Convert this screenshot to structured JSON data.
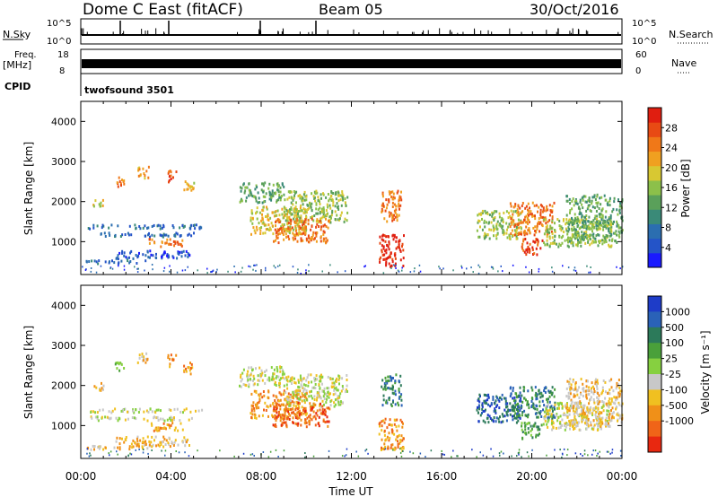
{
  "header": {
    "title": "Dome C East (fitACF)",
    "beam": "Beam 05",
    "date": "30/Oct/2016"
  },
  "status_panels": {
    "nsky": {
      "label": "N.Sky",
      "tick_top": "10^5",
      "tick_bottom": "10^0"
    },
    "nsearch": {
      "label": "N.Search",
      "tick_top": "10^5",
      "tick_bottom": "10^0"
    },
    "freq": {
      "label_line1": "Freq.",
      "label_line2": "[MHz]",
      "tick_top": "18",
      "tick_bottom": "8"
    },
    "nave": {
      "label": "Nave",
      "tick_top": "60",
      "tick_bottom": "0"
    },
    "cpid": {
      "label": "CPID",
      "value": "twofsound 3501"
    }
  },
  "chart_data": [
    {
      "type": "heatmap",
      "name": "power",
      "ylabel": "Slant Range [km]",
      "xlabel": "Time UT",
      "x_ticks": [
        "00:00",
        "04:00",
        "08:00",
        "12:00",
        "16:00",
        "20:00",
        "00:00"
      ],
      "y_ticks": [
        1000,
        2000,
        3000,
        4000
      ],
      "xlim_hours": [
        0,
        24
      ],
      "ylim_km": [
        180,
        4500
      ],
      "colorbar": {
        "label": "Power [dB]",
        "ticks": [
          4,
          8,
          12,
          16,
          20,
          24,
          28
        ],
        "range": [
          0,
          32
        ],
        "colors": [
          "#1a1aff",
          "#2454c8",
          "#2b6eb0",
          "#3a8a78",
          "#5aa05a",
          "#8cc04a",
          "#d8c832",
          "#f0a020",
          "#f07818",
          "#e84a14",
          "#e01e10"
        ]
      },
      "patches": [
        {
          "t": [
            0.5,
            1.0
          ],
          "r": [
            1900,
            2100
          ],
          "c": 6
        },
        {
          "t": [
            1.5,
            1.9
          ],
          "r": [
            2400,
            2700
          ],
          "c": 8
        },
        {
          "t": [
            2.5,
            3.0
          ],
          "r": [
            2600,
            2900
          ],
          "c": 7
        },
        {
          "t": [
            3.8,
            4.2
          ],
          "r": [
            2500,
            2800
          ],
          "c": 9
        },
        {
          "t": [
            4.5,
            5.0
          ],
          "r": [
            2300,
            2600
          ],
          "c": 6
        },
        {
          "t": [
            0.3,
            5.5
          ],
          "r": [
            1350,
            1450
          ],
          "c": 2
        },
        {
          "t": [
            0.3,
            5.0
          ],
          "r": [
            1150,
            1250
          ],
          "c": 2
        },
        {
          "t": [
            1.5,
            4.8
          ],
          "r": [
            600,
            800
          ],
          "c": 1
        },
        {
          "t": [
            0.2,
            3.0
          ],
          "r": [
            480,
            560
          ],
          "c": 2
        },
        {
          "t": [
            3.0,
            4.5
          ],
          "r": [
            900,
            1100
          ],
          "c": 8
        },
        {
          "t": [
            7.0,
            9.0
          ],
          "r": [
            2000,
            2500
          ],
          "c": 4
        },
        {
          "t": [
            7.5,
            10.0
          ],
          "r": [
            1200,
            1900
          ],
          "c": 6
        },
        {
          "t": [
            9.0,
            11.8
          ],
          "r": [
            1500,
            2300
          ],
          "c": 5
        },
        {
          "t": [
            8.5,
            11.0
          ],
          "r": [
            1000,
            1600
          ],
          "c": 8
        },
        {
          "t": [
            13.2,
            14.3
          ],
          "r": [
            400,
            1200
          ],
          "c": 10
        },
        {
          "t": [
            13.3,
            14.2
          ],
          "r": [
            1500,
            2300
          ],
          "c": 8
        },
        {
          "t": [
            17.5,
            19.5
          ],
          "r": [
            1100,
            1800
          ],
          "c": 5
        },
        {
          "t": [
            19.0,
            21.0
          ],
          "r": [
            1200,
            2000
          ],
          "c": 8
        },
        {
          "t": [
            20.5,
            23.5
          ],
          "r": [
            900,
            1600
          ],
          "c": 5
        },
        {
          "t": [
            21.5,
            24.0
          ],
          "r": [
            1000,
            2200
          ],
          "c": 4
        },
        {
          "t": [
            19.5,
            20.5
          ],
          "r": [
            700,
            1100
          ],
          "c": 9
        }
      ]
    },
    {
      "type": "heatmap",
      "name": "velocity",
      "ylabel": "Slant Range [km]",
      "xlabel": "Time UT",
      "x_ticks": [
        "00:00",
        "04:00",
        "08:00",
        "12:00",
        "16:00",
        "20:00",
        "00:00"
      ],
      "y_ticks": [
        1000,
        2000,
        3000,
        4000
      ],
      "xlim_hours": [
        0,
        24
      ],
      "ylim_km": [
        180,
        4500
      ],
      "colorbar": {
        "label": "Velocity [m s⁻¹]",
        "ticks": [
          "1000",
          "500",
          "100",
          "25",
          "-25",
          "-100",
          "-500",
          "-1000"
        ],
        "colors": [
          "#1e3cc8",
          "#2a62b8",
          "#2c7a5a",
          "#4aa03a",
          "#86d040",
          "#c8c8c8",
          "#f0c020",
          "#f09018",
          "#f06418",
          "#e82810"
        ]
      },
      "patches": [
        {
          "t": [
            0.5,
            1.0
          ],
          "r": [
            1900,
            2100
          ],
          "c": 6
        },
        {
          "t": [
            1.5,
            1.9
          ],
          "r": [
            2400,
            2700
          ],
          "c": 4
        },
        {
          "t": [
            2.5,
            3.0
          ],
          "r": [
            2600,
            2900
          ],
          "c": 6
        },
        {
          "t": [
            3.8,
            4.2
          ],
          "r": [
            2500,
            2800
          ],
          "c": 7
        },
        {
          "t": [
            4.5,
            5.0
          ],
          "r": [
            2300,
            2600
          ],
          "c": 7
        },
        {
          "t": [
            0.3,
            5.5
          ],
          "r": [
            1350,
            1450
          ],
          "c": 5
        },
        {
          "t": [
            0.3,
            5.0
          ],
          "r": [
            1150,
            1250
          ],
          "c": 5
        },
        {
          "t": [
            1.5,
            4.8
          ],
          "r": [
            500,
            750
          ],
          "c": 6
        },
        {
          "t": [
            0.2,
            3.0
          ],
          "r": [
            430,
            520
          ],
          "c": 6
        },
        {
          "t": [
            3.0,
            4.5
          ],
          "r": [
            900,
            1100
          ],
          "c": 7
        },
        {
          "t": [
            7.0,
            9.0
          ],
          "r": [
            2000,
            2500
          ],
          "c": 5
        },
        {
          "t": [
            7.5,
            10.0
          ],
          "r": [
            1200,
            1900
          ],
          "c": 7
        },
        {
          "t": [
            9.0,
            11.8
          ],
          "r": [
            1500,
            2300
          ],
          "c": 5
        },
        {
          "t": [
            8.5,
            11.0
          ],
          "r": [
            1000,
            1600
          ],
          "c": 8
        },
        {
          "t": [
            13.2,
            14.3
          ],
          "r": [
            400,
            1200
          ],
          "c": 7
        },
        {
          "t": [
            13.3,
            14.2
          ],
          "r": [
            1500,
            2300
          ],
          "c": 2
        },
        {
          "t": [
            17.5,
            19.5
          ],
          "r": [
            1100,
            1800
          ],
          "c": 1
        },
        {
          "t": [
            19.0,
            21.0
          ],
          "r": [
            1200,
            2000
          ],
          "c": 2
        },
        {
          "t": [
            20.5,
            23.5
          ],
          "r": [
            900,
            1600
          ],
          "c": 5
        },
        {
          "t": [
            21.5,
            24.0
          ],
          "r": [
            1000,
            2200
          ],
          "c": 6
        },
        {
          "t": [
            19.5,
            20.5
          ],
          "r": [
            700,
            1100
          ],
          "c": 3
        }
      ]
    }
  ]
}
